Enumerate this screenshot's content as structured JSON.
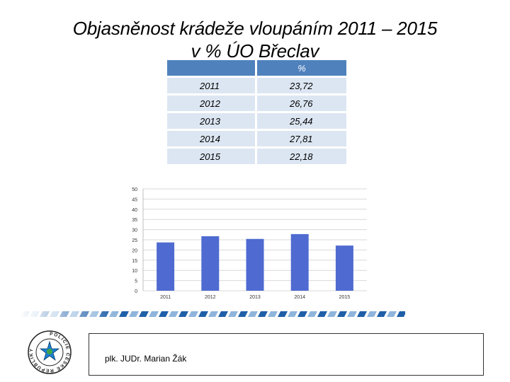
{
  "slide": {
    "title_line1": "Objasněnost krádeže vloupáním 2011 – 2015",
    "title_line2": "v % ÚO Břeclav",
    "footer_author": "plk. JUDr. Marian Žák"
  },
  "table": {
    "header_year": "",
    "header_value": "%",
    "rows": [
      {
        "year": "2011",
        "value": "23,72"
      },
      {
        "year": "2012",
        "value": "26,76"
      },
      {
        "year": "2013",
        "value": "25,44"
      },
      {
        "year": "2014",
        "value": "27,81"
      },
      {
        "year": "2015",
        "value": "22,18"
      }
    ]
  },
  "logo": {
    "text": "POLICIE ČESKÉ REPUBLIKY"
  },
  "chart_data": {
    "type": "bar",
    "categories": [
      "2011",
      "2012",
      "2013",
      "2014",
      "2015"
    ],
    "values": [
      23.72,
      26.76,
      25.44,
      27.81,
      22.18
    ],
    "ylim": [
      0,
      50
    ],
    "yticks": [
      0,
      5,
      10,
      15,
      20,
      25,
      30,
      35,
      40,
      45,
      50
    ],
    "grid": true,
    "title": "",
    "xlabel": "",
    "ylabel": "",
    "bar_color": "#4f6bd1"
  },
  "colors": {
    "table_header": "#4f81bd",
    "table_cell": "#dce6f2",
    "deco_dark": "#1f5fa8",
    "deco_light": "#8fb5dc"
  }
}
